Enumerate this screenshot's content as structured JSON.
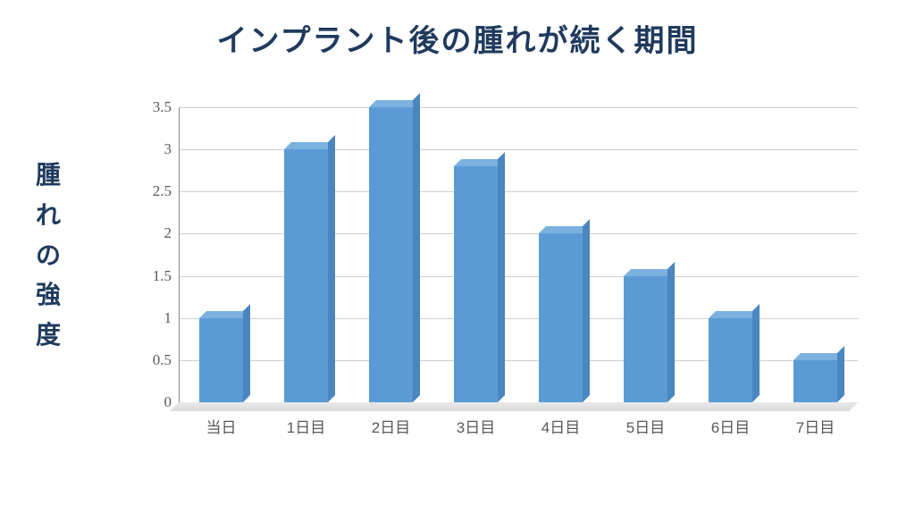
{
  "title": {
    "text": "インプラント後の腫れが続く期間",
    "fontsize": 34,
    "color": "#1f3a5d"
  },
  "ylabel": {
    "text": "腫れの強度",
    "fontsize": 28,
    "color": "#1f3a5d"
  },
  "chart": {
    "type": "bar-3d",
    "categories": [
      "当日",
      "1日目",
      "2日目",
      "3日目",
      "4日目",
      "5日目",
      "6日目",
      "7日目"
    ],
    "values": [
      1.0,
      3.0,
      3.5,
      2.8,
      2.0,
      1.5,
      1.0,
      0.5
    ],
    "bar_front_color": "#5b9bd5",
    "bar_top_color": "#7bb1df",
    "bar_side_color": "#4a86bf",
    "ylim": [
      0,
      3.5
    ],
    "ytick_step": 0.5,
    "yticks": [
      "0",
      "0.5",
      "1",
      "1.5",
      "2",
      "2.5",
      "3",
      "3.5"
    ],
    "grid_color": "#cfcfcf",
    "axis_color": "#8a8a8a",
    "background_color": "#ffffff",
    "tick_fontsize": 17,
    "tick_color": "#595959",
    "bar_width_ratio": 0.52
  }
}
